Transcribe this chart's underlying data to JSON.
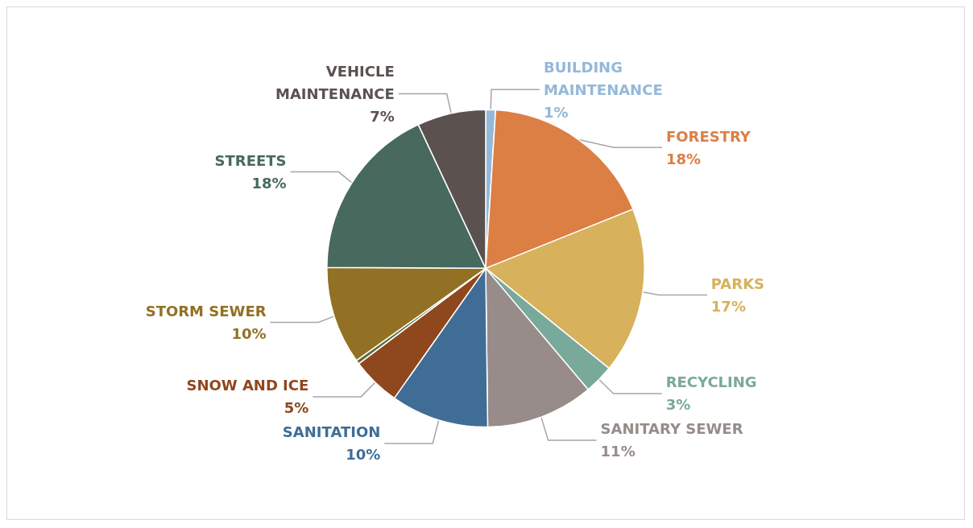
{
  "chart_data": {
    "type": "pie",
    "categories": [
      "BUILDING MAINTENANCE",
      "FORESTRY",
      "PARKS",
      "RECYCLING",
      "SANITARY SEWER",
      "SANITATION",
      "SNOW AND ICE",
      null,
      "STORM SEWER",
      "STREETS",
      "VEHICLE MAINTENANCE"
    ],
    "values": [
      1,
      18,
      17,
      3,
      11,
      10,
      5,
      0.4,
      10,
      18,
      7
    ],
    "value_labels": [
      "1%",
      "18%",
      "17%",
      "3%",
      "11%",
      "10%",
      "5%",
      null,
      "10%",
      "18%",
      "7%"
    ],
    "colors": [
      "#94b8d9",
      "#dc7f45",
      "#d7b15b",
      "#79a99b",
      "#978c8a",
      "#3f6d96",
      "#8f471e",
      "#5e6b3a",
      "#927124",
      "#47695e",
      "#5b5250"
    ],
    "legend": false
  }
}
